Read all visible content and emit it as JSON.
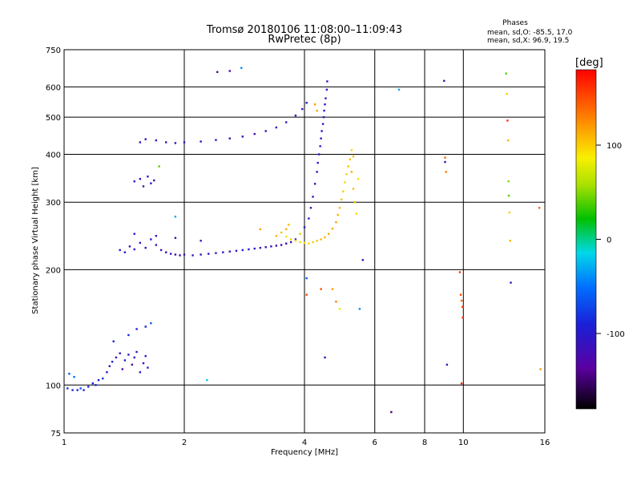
{
  "chart_data": {
    "type": "scatter",
    "title": "Tromsø 20180106 11:08:00–11:09:43",
    "subtitle": "RwPretec (8p)",
    "xlabel": "Frequency [MHz]",
    "ylabel": "Stationary phase Virtual Height [km]",
    "x_scale": "log",
    "y_scale": "log",
    "xlim": [
      1,
      16
    ],
    "ylim": [
      75,
      750
    ],
    "x_ticks": [
      1,
      2,
      4,
      6,
      8,
      10,
      16
    ],
    "y_ticks": [
      75,
      100,
      200,
      300,
      400,
      500,
      600,
      750
    ],
    "grid": true,
    "phases": {
      "heading": "Phases",
      "line_o": "mean, sd,O:  -85.5, 17.0",
      "line_x": "mean, sd,X:   96.9, 19.5"
    },
    "colorbar": {
      "label": "[deg]",
      "ticks": [
        100,
        0,
        -100
      ],
      "range": [
        -180,
        180
      ]
    },
    "series": [
      {
        "points": [
          [
            1.02,
            98,
            -80
          ],
          [
            1.05,
            97,
            -90
          ],
          [
            1.08,
            97,
            -85
          ],
          [
            1.1,
            98,
            -70
          ],
          [
            1.12,
            97,
            -95
          ],
          [
            1.15,
            99,
            -88
          ],
          [
            1.18,
            101,
            -92
          ],
          [
            1.2,
            100,
            -86
          ],
          [
            1.22,
            103,
            -98
          ],
          [
            1.25,
            104,
            -80
          ],
          [
            1.03,
            107,
            -60
          ],
          [
            1.06,
            105,
            -50
          ],
          [
            1.28,
            108,
            -100
          ],
          [
            1.3,
            112,
            -110
          ],
          [
            1.32,
            115,
            -95
          ],
          [
            1.35,
            118,
            -120
          ],
          [
            1.38,
            121,
            -105
          ],
          [
            1.4,
            110,
            -130
          ],
          [
            1.42,
            116,
            -90
          ],
          [
            1.45,
            120,
            -115
          ],
          [
            1.48,
            113,
            -125
          ],
          [
            1.5,
            118,
            -100
          ],
          [
            1.52,
            122,
            -110
          ],
          [
            1.55,
            108,
            -95
          ],
          [
            1.58,
            114,
            -120
          ],
          [
            1.6,
            119,
            -105
          ],
          [
            1.62,
            111,
            -88
          ],
          [
            1.33,
            130,
            -92
          ],
          [
            1.45,
            135,
            -85
          ],
          [
            1.52,
            140,
            -98
          ],
          [
            1.6,
            142,
            -90
          ],
          [
            1.65,
            145,
            -60
          ],
          [
            1.38,
            225,
            -100
          ],
          [
            1.42,
            222,
            -95
          ],
          [
            1.46,
            230,
            -110
          ],
          [
            1.5,
            226,
            -105
          ],
          [
            1.55,
            235,
            -100
          ],
          [
            1.6,
            228,
            -98
          ],
          [
            1.65,
            240,
            -102
          ],
          [
            1.7,
            232,
            -108
          ],
          [
            1.75,
            225,
            -112
          ],
          [
            1.8,
            222,
            -115
          ],
          [
            1.85,
            220,
            -118
          ],
          [
            1.9,
            219,
            -120
          ],
          [
            1.95,
            218,
            -122
          ],
          [
            2.0,
            219,
            -118
          ],
          [
            2.1,
            218,
            -115
          ],
          [
            2.2,
            219,
            -112
          ],
          [
            2.3,
            220,
            -110
          ],
          [
            2.4,
            221,
            -108
          ],
          [
            2.5,
            222,
            -106
          ],
          [
            2.6,
            223,
            -104
          ],
          [
            2.7,
            224,
            -100
          ],
          [
            2.8,
            225,
            -98
          ],
          [
            2.9,
            226,
            -96
          ],
          [
            3.0,
            227,
            -100
          ],
          [
            3.1,
            228,
            -104
          ],
          [
            3.2,
            229,
            -110
          ],
          [
            3.3,
            230,
            -115
          ],
          [
            3.4,
            231,
            -120
          ],
          [
            3.5,
            232,
            -124
          ],
          [
            3.6,
            234,
            -118
          ],
          [
            3.7,
            236,
            -112
          ],
          [
            3.8,
            240,
            -106
          ],
          [
            3.9,
            248,
            -100
          ],
          [
            4.0,
            258,
            -98
          ],
          [
            4.1,
            272,
            -100
          ],
          [
            4.15,
            290,
            -104
          ],
          [
            4.2,
            310,
            -106
          ],
          [
            4.25,
            335,
            -108
          ],
          [
            4.3,
            360,
            -110
          ],
          [
            4.32,
            380,
            -106
          ],
          [
            4.35,
            400,
            -102
          ],
          [
            4.38,
            420,
            -100
          ],
          [
            4.4,
            440,
            -104
          ],
          [
            4.42,
            460,
            -108
          ],
          [
            4.45,
            480,
            -106
          ],
          [
            4.47,
            500,
            -100
          ],
          [
            4.48,
            520,
            -98
          ],
          [
            4.5,
            540,
            -102
          ],
          [
            4.52,
            560,
            -104
          ],
          [
            4.55,
            590,
            -100
          ],
          [
            4.56,
            620,
            -98
          ],
          [
            1.5,
            248,
            -96
          ],
          [
            1.7,
            245,
            -100
          ],
          [
            1.9,
            242,
            -104
          ],
          [
            2.2,
            238,
            -106
          ],
          [
            1.55,
            430,
            -100
          ],
          [
            1.6,
            438,
            -104
          ],
          [
            1.7,
            435,
            -108
          ],
          [
            1.8,
            430,
            -106
          ],
          [
            1.9,
            428,
            -110
          ],
          [
            2.0,
            430,
            -104
          ],
          [
            2.2,
            432,
            -106
          ],
          [
            2.4,
            436,
            -110
          ],
          [
            2.6,
            440,
            -114
          ],
          [
            2.8,
            445,
            -118
          ],
          [
            3.0,
            452,
            -120
          ],
          [
            3.2,
            460,
            -118
          ],
          [
            3.4,
            470,
            -114
          ],
          [
            3.6,
            485,
            -110
          ],
          [
            3.8,
            505,
            -108
          ],
          [
            3.95,
            525,
            -104
          ],
          [
            4.05,
            545,
            -100
          ],
          [
            1.5,
            340,
            -100
          ],
          [
            1.55,
            345,
            -104
          ],
          [
            1.58,
            330,
            -108
          ],
          [
            1.62,
            350,
            -102
          ],
          [
            1.65,
            336,
            -106
          ],
          [
            1.68,
            342,
            -110
          ]
        ]
      },
      {
        "points": [
          [
            3.4,
            245,
            110
          ],
          [
            3.5,
            250,
            105
          ],
          [
            3.6,
            255,
            112
          ],
          [
            3.65,
            262,
            108
          ],
          [
            3.7,
            240,
            102
          ],
          [
            3.8,
            238,
            98
          ],
          [
            3.9,
            236,
            95
          ],
          [
            4.0,
            235,
            92
          ],
          [
            4.1,
            234,
            96
          ],
          [
            4.2,
            236,
            100
          ],
          [
            4.3,
            238,
            104
          ],
          [
            4.4,
            240,
            108
          ],
          [
            4.5,
            243,
            110
          ],
          [
            4.6,
            248,
            112
          ],
          [
            4.7,
            256,
            115
          ],
          [
            4.8,
            266,
            118
          ],
          [
            4.85,
            278,
            112
          ],
          [
            4.9,
            290,
            108
          ],
          [
            4.95,
            305,
            104
          ],
          [
            5.0,
            320,
            100
          ],
          [
            5.05,
            338,
            96
          ],
          [
            5.1,
            355,
            100
          ],
          [
            5.15,
            372,
            104
          ],
          [
            5.2,
            388,
            108
          ],
          [
            5.25,
            360,
            112
          ],
          [
            5.3,
            325,
            106
          ],
          [
            5.35,
            300,
            102
          ],
          [
            5.4,
            280,
            98
          ],
          [
            5.25,
            410,
            95
          ],
          [
            5.3,
            395,
            110
          ],
          [
            4.25,
            540,
            120
          ],
          [
            4.3,
            520,
            115
          ],
          [
            3.9,
            248,
            88
          ],
          [
            3.6,
            244,
            80
          ],
          [
            5.45,
            345,
            90
          ]
        ]
      },
      {
        "points": [
          [
            1.73,
            372,
            40
          ],
          [
            1.9,
            275,
            -30
          ],
          [
            2.28,
            103,
            -20
          ],
          [
            2.42,
            656,
            -140
          ],
          [
            2.6,
            660,
            -130
          ],
          [
            2.78,
            672,
            -40
          ],
          [
            3.1,
            255,
            120
          ],
          [
            4.05,
            172,
            150
          ],
          [
            4.05,
            190,
            -60
          ],
          [
            4.4,
            178,
            150
          ],
          [
            4.5,
            118,
            -110
          ],
          [
            4.7,
            178,
            120
          ],
          [
            4.8,
            165,
            130
          ],
          [
            4.9,
            158,
            80
          ],
          [
            5.5,
            158,
            -40
          ],
          [
            5.6,
            212,
            -110
          ],
          [
            6.6,
            85,
            -150
          ],
          [
            6.9,
            590,
            -30
          ],
          [
            8.95,
            622,
            -110
          ],
          [
            9.0,
            392,
            140
          ],
          [
            9.0,
            382,
            -120
          ],
          [
            9.05,
            360,
            130
          ],
          [
            9.1,
            113,
            -100
          ],
          [
            9.8,
            197,
            160
          ],
          [
            9.85,
            172,
            150
          ],
          [
            9.9,
            166,
            140
          ],
          [
            9.95,
            160,
            160
          ],
          [
            9.97,
            150,
            165
          ],
          [
            9.9,
            101,
            165
          ],
          [
            12.8,
            650,
            40
          ],
          [
            12.85,
            575,
            100
          ],
          [
            12.9,
            490,
            160
          ],
          [
            12.95,
            435,
            110
          ],
          [
            12.98,
            340,
            50
          ],
          [
            13.0,
            312,
            40
          ],
          [
            13.05,
            282,
            100
          ],
          [
            13.1,
            238,
            110
          ],
          [
            13.15,
            185,
            -110
          ],
          [
            15.5,
            290,
            140
          ],
          [
            15.6,
            110,
            120
          ]
        ]
      }
    ]
  }
}
